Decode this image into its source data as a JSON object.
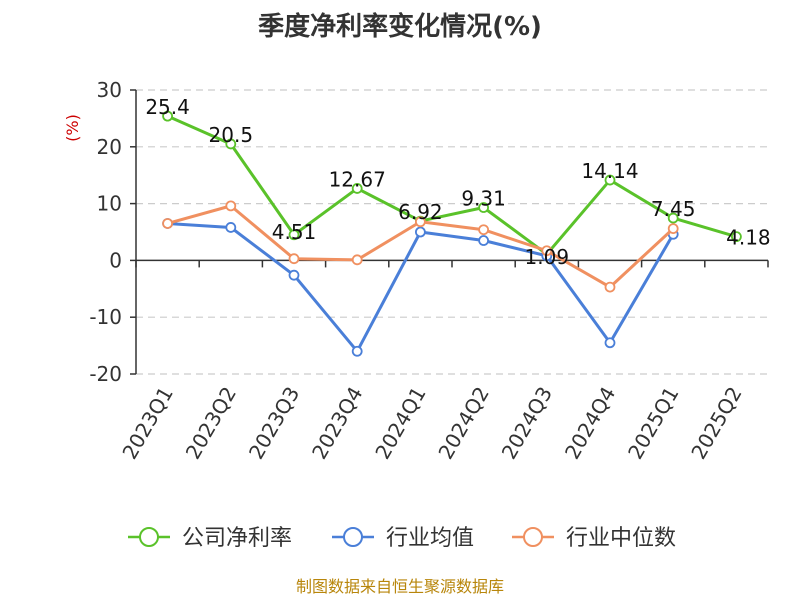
{
  "chart_data": {
    "type": "line",
    "title": "季度净利率变化情况(%)",
    "ylabel": "(%)",
    "xlabel": "",
    "ylim": [
      -20,
      30
    ],
    "yticks": [
      30,
      20,
      10,
      0,
      -10,
      -20
    ],
    "grid": "horizontal-dashed",
    "legend_position": "bottom",
    "categories": [
      "2023Q1",
      "2023Q2",
      "2023Q3",
      "2023Q4",
      "2024Q1",
      "2024Q2",
      "2024Q3",
      "2024Q4",
      "2025Q1",
      "2025Q2"
    ],
    "series": [
      {
        "name": "公司净利率",
        "color": "#5ac22a",
        "values": [
          25.4,
          20.5,
          4.51,
          12.67,
          6.92,
          9.31,
          1.09,
          14.14,
          7.45,
          4.18
        ],
        "labels": [
          "25.4",
          "20.5",
          "4.51",
          "12.67",
          "6.92",
          "9.31",
          "1.09",
          "14.14",
          "7.45",
          "4.18"
        ]
      },
      {
        "name": "行业均值",
        "color": "#4a7fd8",
        "values": [
          6.5,
          5.8,
          -2.6,
          -16.0,
          5.0,
          3.5,
          0.8,
          -14.5,
          4.6,
          null
        ]
      },
      {
        "name": "行业中位数",
        "color": "#f09060",
        "values": [
          6.5,
          9.6,
          0.3,
          0.1,
          6.8,
          5.4,
          1.7,
          -4.7,
          5.6,
          null
        ]
      }
    ]
  },
  "source": "制图数据来自恒生聚源数据库"
}
